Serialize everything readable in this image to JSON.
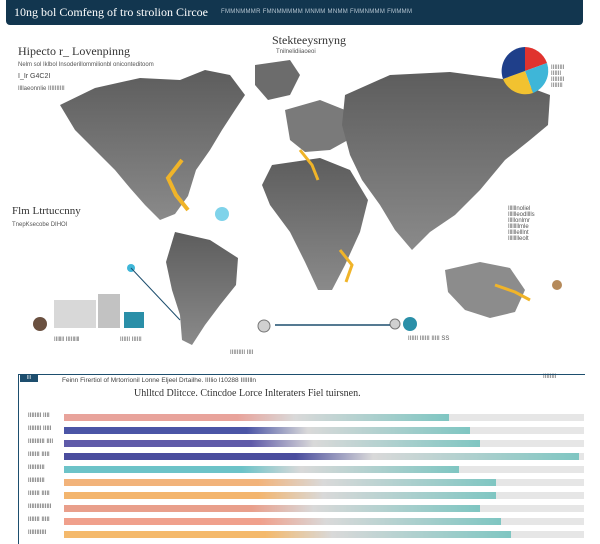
{
  "banner": {
    "title": "10ng bol Comfeng of tro strolion Circoe",
    "subtitle": "FMMNMMMR FMNMMMMM MNMM MNMM FMMNMMM FMMMM"
  },
  "left_header": {
    "title": "Hipecto r_ Lovenpinng",
    "line1": "Nelm sol Iklbol Insoderillommilionbl oniconteditoom",
    "line2": "I_Ir G4C2I",
    "line3": "Illlaeonnlie IIIIIIIIII"
  },
  "center_header": {
    "title": "Stekteeysrnyng",
    "sub": "Tnilnelidiiaoeoi"
  },
  "left_mid": {
    "title": "Flm Ltrtuccnny",
    "sub": "TnepKsecobe DIHOI"
  },
  "right_mid": {
    "lines": [
      "Illlllnoliel",
      "Illllleodlllls",
      "Illllonlmr",
      "Illlllllmle",
      "Illlllelllnt",
      "Illllllleolt"
    ]
  },
  "small_notes": {
    "bottom_left": "IIlllll IIIIIllll",
    "bottom_left2": "IIIIII IIIIII",
    "bottom_center": "IIIIIIIII IIII",
    "bottom_right": "IIIIII IIIIII IIIII SS",
    "right_cap": "IIIIIIII",
    "right_legend": [
      "IIIIIIII",
      "IIIIII",
      "IIIIIIII",
      "IIIIIII"
    ]
  },
  "panel": {
    "tag": "III",
    "header_line": "Feinn Firertiol of Mrtorrionil Lonne Eljeel Drtailhe.      IIIlio I10288 IIIIIlln",
    "title": "Uhlltcd Dlitcce. Ctincdoe Lorce Inlteraters Fiel tuirsnen."
  },
  "pie_legend_colors": [
    "#1f3f8a",
    "#e0332e",
    "#f2c230",
    "#3eb6d8"
  ],
  "rows": [
    {
      "label": "IIIIIIII IIII",
      "color": "#e8a39b",
      "value": 0.74
    },
    {
      "label": "IIIIIIII IIIII",
      "color": "#4b55a6",
      "value": 0.78
    },
    {
      "label": "IIIIIIIIII IIII",
      "color": "#5f5aa9",
      "value": 0.8
    },
    {
      "label": "IIIIIII IIIII",
      "color": "#4a4d9e",
      "value": 0.99
    },
    {
      "label": "IIIIIIIIII",
      "color": "#6cc3c8",
      "value": 0.76
    },
    {
      "label": "IIIIIIIIII",
      "color": "#f2b37a",
      "value": 0.83
    },
    {
      "label": "IIIIIII IIIII",
      "color": "#f3b56e",
      "value": 0.83
    },
    {
      "label": "IIIIIIIIIIIIII",
      "color": "#e99f8b",
      "value": 0.8
    },
    {
      "label": "IIIIIII IIIII",
      "color": "#f0a08c",
      "value": 0.84
    },
    {
      "label": "IIIIIIIIIII",
      "color": "#f4b96c",
      "value": 0.86
    }
  ]
}
